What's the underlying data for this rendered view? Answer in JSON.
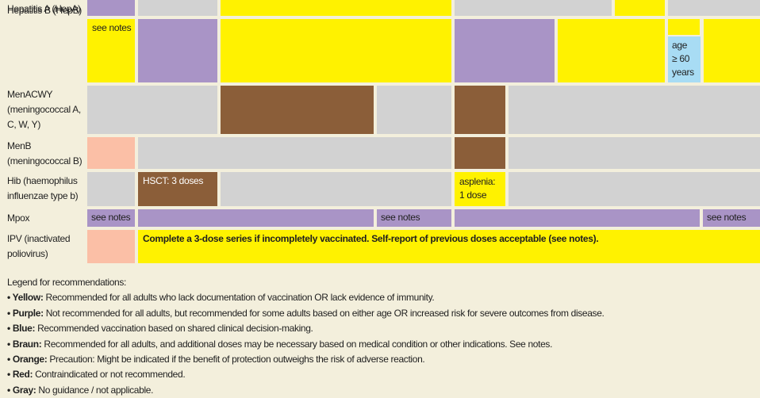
{
  "colors": {
    "yellow": "#fff200",
    "purple": "#a994c6",
    "gray": "#d2d2d2",
    "brown": "#8b5e39",
    "blue": "#a8dcf4",
    "salmon": "#fbbfa6",
    "background": "#f3efdc"
  },
  "rows": [
    {
      "label": "Hepatitis A (HepA)",
      "cells": [
        {
          "color": "purple",
          "text": ""
        },
        {
          "color": "gray",
          "text": ""
        },
        {
          "color": "yellow",
          "text": ""
        },
        {
          "color": "gray",
          "text": ""
        },
        {
          "color": "yellow",
          "text": ""
        },
        {
          "color": "gray",
          "text": ""
        }
      ]
    },
    {
      "label": "Hepatitis B (HepB)",
      "cells": [
        {
          "color": "yellow",
          "text": "see notes"
        },
        {
          "color": "purple",
          "text": ""
        },
        {
          "color": "yellow",
          "text": ""
        },
        {
          "color": "purple",
          "text": ""
        },
        {
          "color": "yellow",
          "text": ""
        },
        {
          "color": "yellow",
          "text": ""
        },
        {
          "color": "blue",
          "text": "age\n≥ 60\nyears"
        },
        {
          "color": "yellow",
          "text": ""
        }
      ]
    },
    {
      "label": "MenACWY\n(meningococcal A,\nC, W, Y)",
      "cells": [
        {
          "color": "gray",
          "text": ""
        },
        {
          "color": "brown",
          "text": ""
        },
        {
          "color": "gray",
          "text": ""
        },
        {
          "color": "brown",
          "text": ""
        },
        {
          "color": "gray",
          "text": ""
        }
      ]
    },
    {
      "label": "MenB\n(meningococcal B)",
      "cells": [
        {
          "color": "salmon",
          "text": ""
        },
        {
          "color": "gray",
          "text": ""
        },
        {
          "color": "brown",
          "text": ""
        },
        {
          "color": "gray",
          "text": ""
        }
      ]
    },
    {
      "label": "Hib (haemophilus\ninfluenzae type b)",
      "cells": [
        {
          "color": "gray",
          "text": ""
        },
        {
          "color": "brown",
          "text": "HSCT: 3 doses"
        },
        {
          "color": "gray",
          "text": ""
        },
        {
          "color": "yellow",
          "text": "asplenia:\n1 dose"
        },
        {
          "color": "gray",
          "text": ""
        }
      ]
    },
    {
      "label": "Mpox",
      "cells": [
        {
          "color": "purple",
          "text": "see notes"
        },
        {
          "color": "purple",
          "text": ""
        },
        {
          "color": "purple",
          "text": "see notes"
        },
        {
          "color": "purple",
          "text": ""
        },
        {
          "color": "purple",
          "text": "see notes"
        }
      ]
    },
    {
      "label": "IPV (inactivated\npoliovirus)",
      "cells": [
        {
          "color": "salmon",
          "text": ""
        },
        {
          "color": "yellow",
          "text": "Complete a 3-dose series if incompletely vaccinated. Self-report of previous doses acceptable (see notes)."
        }
      ]
    }
  ],
  "legend": {
    "title": "Legend for recommendations:",
    "items": [
      {
        "color": "Yellow",
        "text": "Recommended for all adults who lack documentation of vaccination OR lack evidence of immunity."
      },
      {
        "color": "Purple",
        "text": "Not recommended for all adults, but recommended for some adults based on either age OR increased risk for severe outcomes from disease."
      },
      {
        "color": "Blue",
        "text": "Recommended vaccination based on shared clinical decision-making."
      },
      {
        "color": "Braun",
        "text": "Recommended for all adults, and additional doses may be necessary based on medical condition or other indications. See notes."
      },
      {
        "color": "Orange",
        "text": "Precaution: Might be indicated if the benefit of protection outweighs the risk of adverse reaction."
      },
      {
        "color": "Red",
        "text": "Contraindicated or not recommended."
      },
      {
        "color": "Gray",
        "text": "No guidance / not applicable."
      }
    ]
  }
}
